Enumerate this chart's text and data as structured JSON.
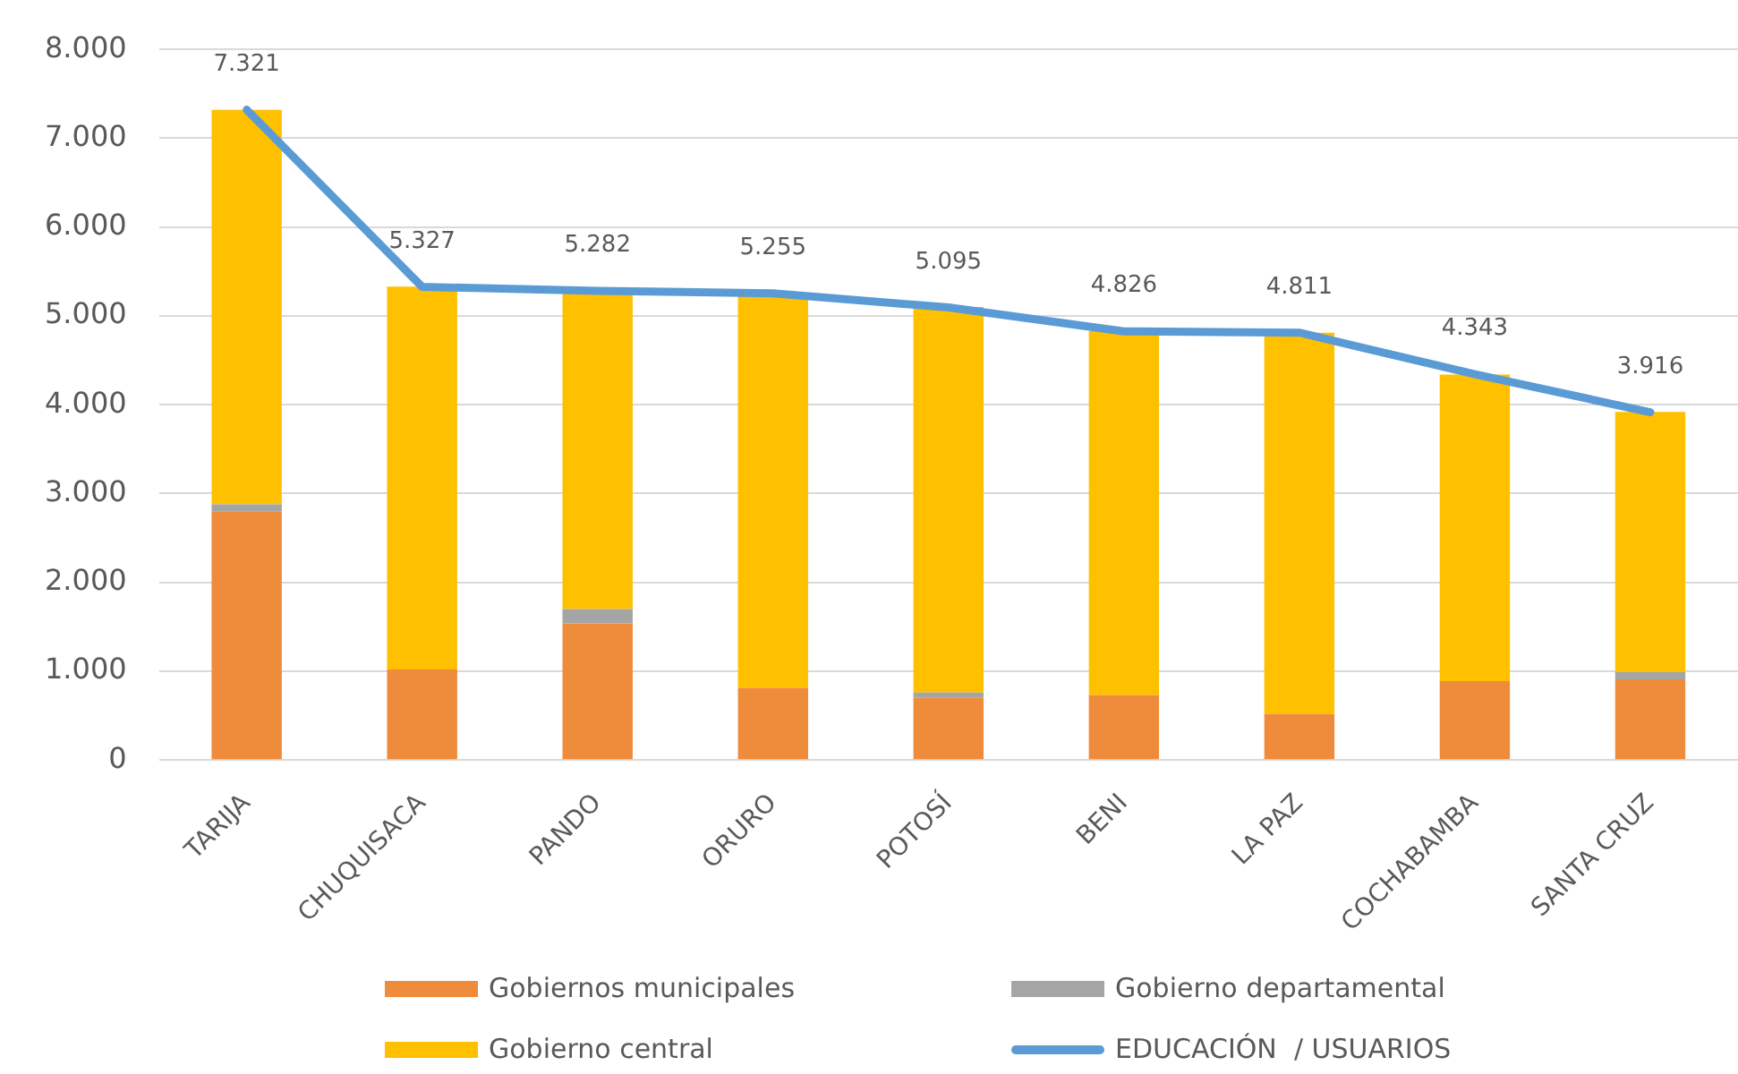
{
  "chart_data": {
    "type": "bar",
    "stacked": true,
    "categories": [
      "TARIJA",
      "CHUQUISACA",
      "PANDO",
      "ORURO",
      "POTOSÍ",
      "BENI",
      "LA PAZ",
      "COCHABAMBA",
      "SANTA CRUZ"
    ],
    "series": [
      {
        "name": "Gobiernos municipales",
        "color": "#ef8c3c",
        "values": [
          2800,
          1020,
          1540,
          810,
          700,
          730,
          520,
          890,
          910
        ]
      },
      {
        "name": "Gobierno departamental",
        "color": "#a5a5a5",
        "values": [
          80,
          null,
          160,
          null,
          60,
          null,
          null,
          null,
          80
        ]
      },
      {
        "name": "Gobierno central",
        "color": "#ffc000",
        "values": [
          4440,
          4310,
          3580,
          4450,
          4340,
          4100,
          4290,
          3450,
          2930
        ]
      },
      {
        "name": "EDUCACIÓN  / USUARIOS",
        "type": "line",
        "color": "#5b9bd5",
        "values": [
          7321,
          5327,
          5282,
          5255,
          5095,
          4826,
          4811,
          4343,
          3916
        ],
        "value_labels": [
          "7.321",
          "5.327",
          "5.282",
          "5.255",
          "5.095",
          "4.826",
          "4.811",
          "4.343",
          "3.916"
        ]
      }
    ],
    "ylim": [
      0,
      8000
    ],
    "yticks": [
      0,
      {
        "value": 1000,
        "label": "1.000"
      },
      {
        "value": 2000,
        "label": "2.000"
      },
      {
        "value": 3000,
        "label": "3.000"
      },
      {
        "value": 4000,
        "label": "4.000"
      },
      {
        "value": 5000,
        "label": "5.000"
      },
      {
        "value": 6000,
        "label": "6.000"
      },
      {
        "value": 7000,
        "label": "7.000"
      },
      {
        "value": 8000,
        "label": "8.000"
      }
    ],
    "grid": "y",
    "legend": "bottom",
    "marker": "none"
  }
}
